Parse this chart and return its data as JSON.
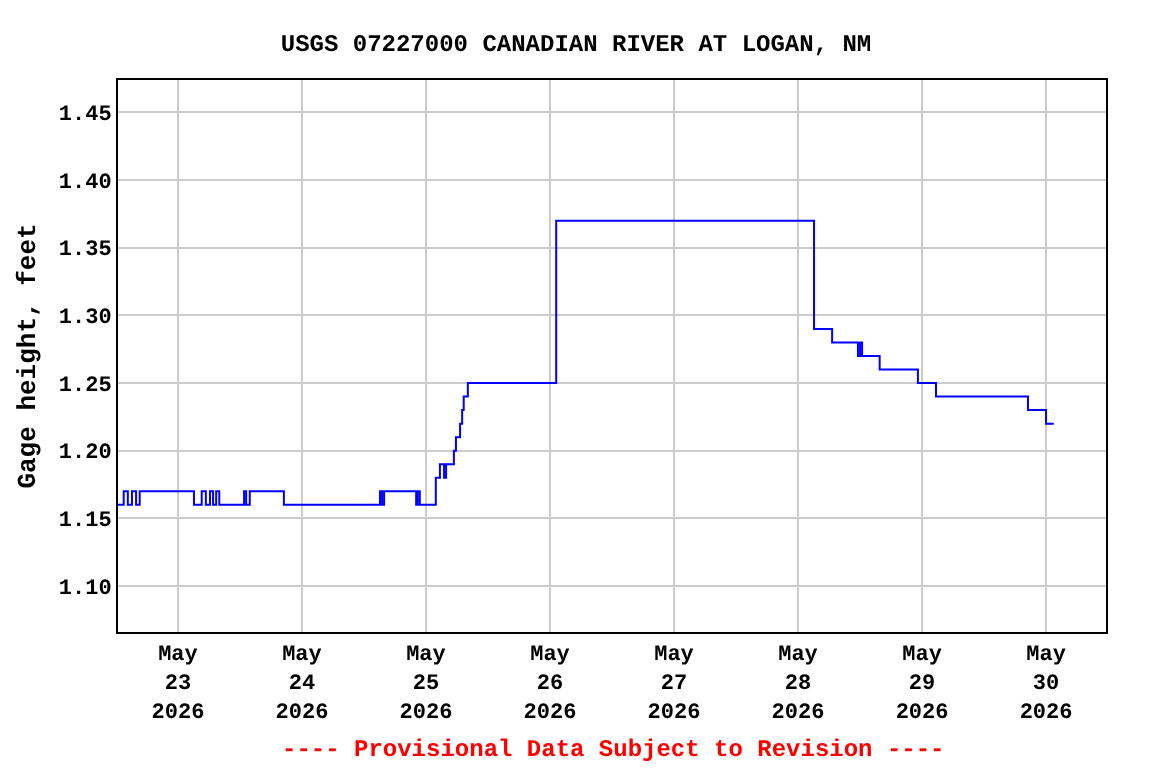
{
  "chart_data": {
    "type": "step",
    "title": "USGS 07227000 CANADIAN RIVER AT LOGAN, NM",
    "ylabel": "Gage height, feet",
    "annotations": [
      "---- Provisional Data Subject to Revision ----"
    ],
    "x": [
      "2026-05-22T12:24",
      "2026-05-22T13:30",
      "2026-05-22T14:18",
      "2026-05-22T15:06",
      "2026-05-22T15:54",
      "2026-05-22T16:36",
      "2026-05-23T03:06",
      "2026-05-23T04:36",
      "2026-05-23T05:24",
      "2026-05-23T06:12",
      "2026-05-23T06:48",
      "2026-05-23T07:24",
      "2026-05-23T08:00",
      "2026-05-23T12:48",
      "2026-05-23T13:12",
      "2026-05-23T13:54",
      "2026-05-23T20:30",
      "2026-05-24T15:06",
      "2026-05-24T15:30",
      "2026-05-24T15:54",
      "2026-05-24T22:06",
      "2026-05-24T22:24",
      "2026-05-24T22:48",
      "2026-05-25T01:54",
      "2026-05-25T02:42",
      "2026-05-25T03:30",
      "2026-05-25T03:54",
      "2026-05-25T05:24",
      "2026-05-25T05:48",
      "2026-05-25T06:36",
      "2026-05-25T07:00",
      "2026-05-25T07:18",
      "2026-05-25T08:06",
      "2026-05-26T01:12",
      "2026-05-28T03:06",
      "2026-05-28T06:36",
      "2026-05-28T11:36",
      "2026-05-28T12:00",
      "2026-05-28T12:24",
      "2026-05-28T15:48",
      "2026-05-28T23:12",
      "2026-05-29T02:42",
      "2026-05-29T20:30",
      "2026-05-30T00:00",
      "2026-05-30T01:30"
    ],
    "series": [
      {
        "color": "#0000ff",
        "values": [
          1.16,
          1.17,
          1.16,
          1.17,
          1.16,
          1.17,
          1.16,
          1.17,
          1.16,
          1.17,
          1.16,
          1.17,
          1.16,
          1.17,
          1.16,
          1.17,
          1.16,
          1.17,
          1.16,
          1.17,
          1.16,
          1.17,
          1.16,
          1.18,
          1.19,
          1.18,
          1.19,
          1.2,
          1.21,
          1.22,
          1.23,
          1.24,
          1.25,
          1.37,
          1.29,
          1.28,
          1.27,
          1.28,
          1.27,
          1.26,
          1.25,
          1.24,
          1.23,
          1.22,
          1.22
        ]
      }
    ],
    "xlim": [
      "2026-05-22T12:24",
      "2026-05-30T11:36"
    ],
    "xticks": [
      {
        "value": "2026-05-23",
        "label": "May\n23\n2026"
      },
      {
        "value": "2026-05-24",
        "label": "May\n24\n2026"
      },
      {
        "value": "2026-05-25",
        "label": "May\n25\n2026"
      },
      {
        "value": "2026-05-26",
        "label": "May\n26\n2026"
      },
      {
        "value": "2026-05-27",
        "label": "May\n27\n2026"
      },
      {
        "value": "2026-05-28",
        "label": "May\n28\n2026"
      },
      {
        "value": "2026-05-29",
        "label": "May\n29\n2026"
      },
      {
        "value": "2026-05-30",
        "label": "May\n30\n2026"
      }
    ],
    "ylim": [
      1.066,
      1.474
    ],
    "yticks": [
      {
        "value": 1.1,
        "label": "1.10"
      },
      {
        "value": 1.15,
        "label": "1.15"
      },
      {
        "value": 1.2,
        "label": "1.20"
      },
      {
        "value": 1.25,
        "label": "1.25"
      },
      {
        "value": 1.3,
        "label": "1.30"
      },
      {
        "value": 1.35,
        "label": "1.35"
      },
      {
        "value": 1.4,
        "label": "1.40"
      },
      {
        "value": 1.45,
        "label": "1.45"
      }
    ],
    "grid": true,
    "marker": "none",
    "line_style": "solid"
  }
}
